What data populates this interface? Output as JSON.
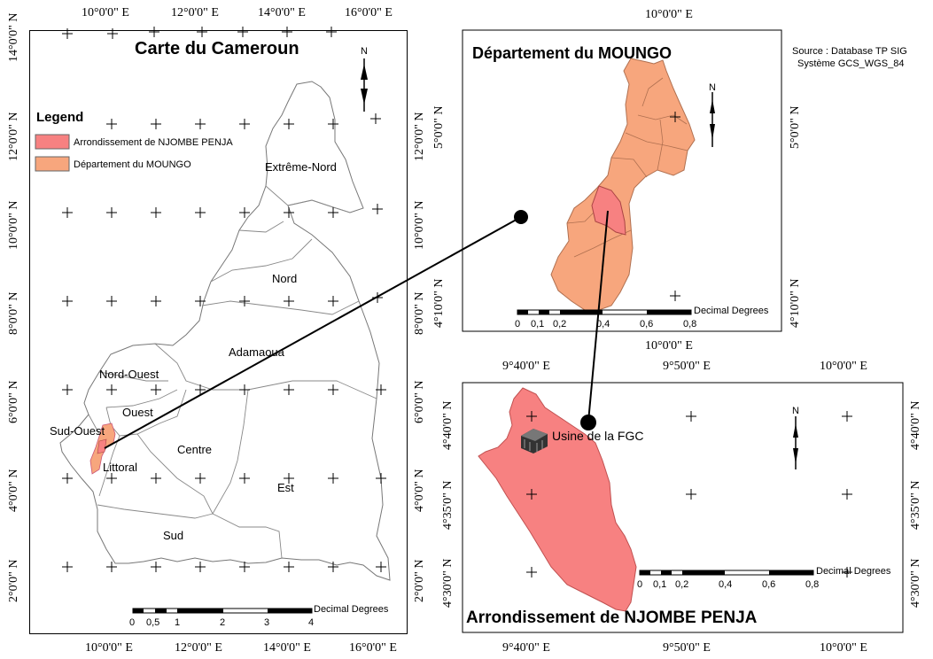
{
  "main_map": {
    "title": "Carte du Cameroun",
    "lon_labels": [
      "10°0'0\" E",
      "12°0'0\" E",
      "14°0'0\" E",
      "16°0'0\" E"
    ],
    "lat_labels": [
      "14°0'0\" N",
      "12°0'0\" N",
      "10°0'0\" N",
      "8°0'0\" N",
      "6°0'0\" N",
      "4°0'0\" N",
      "2°0'0\" N"
    ],
    "regions": [
      "Extrême-Nord",
      "Nord",
      "Adamaoua",
      "Nord-Ouest",
      "Ouest",
      "Sud-Ouest",
      "Littoral",
      "Centre",
      "Est",
      "Sud"
    ],
    "scale": {
      "ticks": [
        "0",
        "0,5",
        "1",
        "2",
        "3",
        "4"
      ],
      "unit": "Decimal Degrees"
    },
    "north_label": "N"
  },
  "legend": {
    "title": "Legend",
    "items": [
      {
        "label": "Arrondissement de NJOMBE PENJA",
        "color": "#f78181"
      },
      {
        "label": "Département du MOUNGO",
        "color": "#f7a67d"
      }
    ]
  },
  "moungo_map": {
    "title": "Département du MOUNGO",
    "lon_labels": [
      "10°0'0\" E",
      "10°0'0\" E"
    ],
    "lat_labels_left": [
      "5°0'0\" N",
      "4°10'0\" N"
    ],
    "lat_labels_right": [
      "5°0'0\" N",
      "4°10'0\" N"
    ],
    "scale": {
      "ticks": [
        "0",
        "0,1",
        "0,2",
        "0,4",
        "0,6",
        "0,8"
      ],
      "unit": "Decimal Degrees"
    },
    "north_label": "N"
  },
  "source": {
    "line1": "Source : Database TP SIG",
    "line2": "Système GCS_WGS_84"
  },
  "njombe_map": {
    "title": "Arrondissement de NJOMBE PENJA",
    "lon_labels": [
      "9°40'0\" E",
      "9°50'0\" E",
      "10°0'0\" E"
    ],
    "lat_labels_left": [
      "4°40'0\" N",
      "4°35'0\" N",
      "4°30'0\" N"
    ],
    "lat_labels_right": [
      "4°40'0\" N",
      "4°35'0\" N",
      "4°30'0\" N"
    ],
    "factory_label": "Usine de la FGC",
    "scale": {
      "ticks": [
        "0",
        "0,1",
        "0,2",
        "0,4",
        "0,6",
        "0,8"
      ],
      "unit": "Decimal Degrees"
    },
    "north_label": "N"
  },
  "colors": {
    "njombe": "#f78181",
    "moungo": "#f7a67d",
    "frame": "#000000"
  }
}
